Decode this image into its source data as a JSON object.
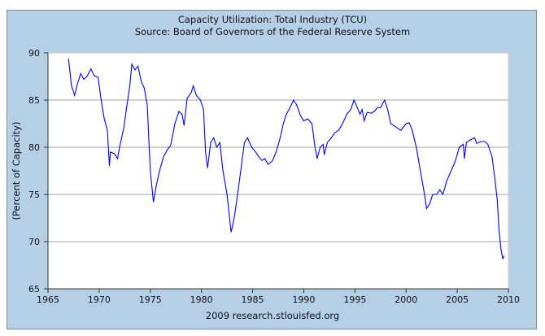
{
  "chart_data": {
    "type": "line",
    "title": "Capacity Utilization: Total Industry (TCU)",
    "subtitle": "Source: Board of Governors of the Federal Reserve System",
    "xlabel": "",
    "ylabel": "(Percent of Capacity)",
    "footer": "2009 research.stlouisfed.org",
    "xlim": [
      1965,
      2010
    ],
    "ylim": [
      65,
      90
    ],
    "xticks": [
      "1965",
      "1970",
      "1975",
      "1980",
      "1985",
      "1990",
      "1995",
      "2000",
      "2005",
      "2010"
    ],
    "yticks": [
      "65",
      "70",
      "75",
      "80",
      "85",
      "90"
    ],
    "grid": true,
    "line_color": "#0000ff",
    "background_color": "#b5cfe6",
    "series": [
      {
        "name": "TCU",
        "x": [
          1967.0,
          1967.3,
          1967.6,
          1967.9,
          1968.2,
          1968.5,
          1968.8,
          1969.2,
          1969.5,
          1969.9,
          1970.2,
          1970.5,
          1970.8,
          1971.0,
          1971.1,
          1971.5,
          1971.8,
          1972.0,
          1972.4,
          1972.7,
          1973.0,
          1973.2,
          1973.5,
          1973.8,
          1974.1,
          1974.4,
          1974.7,
          1975.0,
          1975.3,
          1975.6,
          1975.9,
          1976.3,
          1976.7,
          1977.0,
          1977.4,
          1977.8,
          1978.1,
          1978.3,
          1978.6,
          1979.0,
          1979.2,
          1979.5,
          1979.9,
          1980.2,
          1980.4,
          1980.6,
          1980.9,
          1981.2,
          1981.5,
          1981.8,
          1982.1,
          1982.5,
          1982.9,
          1983.2,
          1983.6,
          1983.9,
          1984.2,
          1984.5,
          1984.9,
          1985.3,
          1985.6,
          1985.9,
          1986.2,
          1986.5,
          1986.9,
          1987.3,
          1987.7,
          1988.0,
          1988.3,
          1988.7,
          1989.0,
          1989.3,
          1989.7,
          1990.0,
          1990.4,
          1990.8,
          1991.1,
          1991.3,
          1991.6,
          1991.9,
          1992.0,
          1992.3,
          1992.7,
          1993.0,
          1993.4,
          1993.8,
          1994.2,
          1994.6,
          1994.9,
          1995.2,
          1995.5,
          1995.7,
          1995.9,
          1996.2,
          1996.6,
          1996.9,
          1997.2,
          1997.5,
          1997.9,
          1998.2,
          1998.5,
          1998.8,
          1999.2,
          1999.5,
          2000.0,
          2000.3,
          2000.6,
          2001.0,
          2001.4,
          2001.8,
          2002.0,
          2002.3,
          2002.6,
          2003.0,
          2003.3,
          2003.6,
          2004.0,
          2004.4,
          2004.8,
          2005.2,
          2005.6,
          2005.7,
          2005.9,
          2006.3,
          2006.7,
          2006.9,
          2007.3,
          2007.7,
          2008.0,
          2008.4,
          2008.7,
          2008.9,
          2009.1,
          2009.3,
          2009.45,
          2009.6
        ],
        "y": [
          89.4,
          86.5,
          85.5,
          86.8,
          87.8,
          87.2,
          87.5,
          88.3,
          87.6,
          87.4,
          85.0,
          83.0,
          81.8,
          78.0,
          79.5,
          79.3,
          78.8,
          80.0,
          82.0,
          84.3,
          86.5,
          88.8,
          88.2,
          88.6,
          87.0,
          86.3,
          84.5,
          77.5,
          74.2,
          76.0,
          77.5,
          79.0,
          79.8,
          80.2,
          82.5,
          83.8,
          83.5,
          82.3,
          85.2,
          85.8,
          86.5,
          85.5,
          85.0,
          84.0,
          79.5,
          77.8,
          80.5,
          81.0,
          80.0,
          80.5,
          77.5,
          75.0,
          71.0,
          72.5,
          75.5,
          78.0,
          80.5,
          81.0,
          80.0,
          79.5,
          79.0,
          78.6,
          78.8,
          78.2,
          78.5,
          79.5,
          81.0,
          82.5,
          83.5,
          84.3,
          85.0,
          84.5,
          83.3,
          82.8,
          83.0,
          82.5,
          80.0,
          78.8,
          80.0,
          80.3,
          79.2,
          80.5,
          81.0,
          81.5,
          81.8,
          82.5,
          83.5,
          84.0,
          85.0,
          84.3,
          83.5,
          84.0,
          82.8,
          83.7,
          83.6,
          83.8,
          84.2,
          84.2,
          85.0,
          84.0,
          82.5,
          82.3,
          82.0,
          81.8,
          82.5,
          82.6,
          81.8,
          80.0,
          77.5,
          75.0,
          73.5,
          74.0,
          75.0,
          75.0,
          75.5,
          75.0,
          76.5,
          77.5,
          78.5,
          80.0,
          80.3,
          78.8,
          80.5,
          80.8,
          81.0,
          80.4,
          80.6,
          80.6,
          80.3,
          79.0,
          76.5,
          74.5,
          71.0,
          69.0,
          68.2,
          68.5
        ]
      }
    ]
  }
}
